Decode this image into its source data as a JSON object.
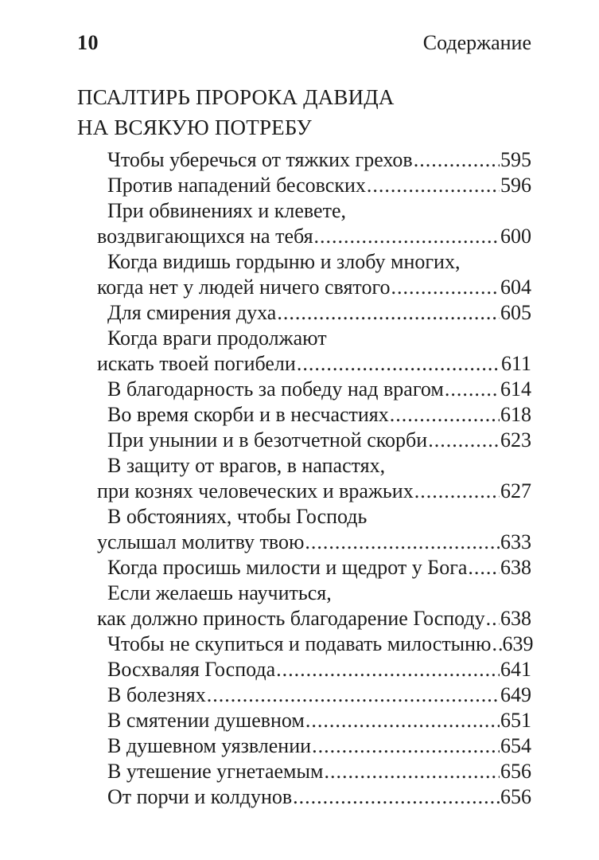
{
  "page": {
    "folio": "10",
    "running_title": "Содержание"
  },
  "section_title": {
    "line1": "ПСАЛТИРЬ ПРОРОКА ДАВИДА",
    "line2": "НА ВСЯКУЮ ПОТРЕБУ"
  },
  "toc": {
    "entries": [
      {
        "lines": [
          "Чтобы уберечься от тяжких грехов"
        ],
        "page": "595"
      },
      {
        "lines": [
          "Против нападений бесовских"
        ],
        "page": "596"
      },
      {
        "lines": [
          "При обвинениях и клевете,",
          "воздвигающихся на тебя"
        ],
        "page": "600"
      },
      {
        "lines": [
          "Когда видишь гордыню и злобу многих,",
          "когда нет у людей ничего святого"
        ],
        "page": "604"
      },
      {
        "lines": [
          "Для смирения духа"
        ],
        "page": "605"
      },
      {
        "lines": [
          "Когда враги продолжают",
          "искать твоей погибели"
        ],
        "page": "611"
      },
      {
        "lines": [
          "В благодарность за победу над врагом"
        ],
        "page": "614"
      },
      {
        "lines": [
          "Во время скорби и в несчастиях"
        ],
        "page": "618"
      },
      {
        "lines": [
          "При унынии и в безотчетной скорби"
        ],
        "page": "623"
      },
      {
        "lines": [
          "В защиту от врагов, в напастях,",
          "при кознях человеческих и вражьих"
        ],
        "page": "627"
      },
      {
        "lines": [
          "В обстояниях, чтобы Господь",
          "услышал молитву твою"
        ],
        "page": "633"
      },
      {
        "lines": [
          "Когда просишь милости и щедрот у Бога"
        ],
        "page": "638"
      },
      {
        "lines": [
          "Если желаешь научиться,",
          "как должно приность благодарение Господу"
        ],
        "page": "638"
      },
      {
        "lines": [
          "Чтобы не скупиться и подавать милостыню"
        ],
        "page": "639"
      },
      {
        "lines": [
          "Восхваляя Господа"
        ],
        "page": "641"
      },
      {
        "lines": [
          "В болезнях"
        ],
        "page": "649"
      },
      {
        "lines": [
          "В смятении душевном"
        ],
        "page": "651"
      },
      {
        "lines": [
          "В душевном уязвлении"
        ],
        "page": "654"
      },
      {
        "lines": [
          "В утешение угнетаемым"
        ],
        "page": "656"
      },
      {
        "lines": [
          "От порчи и колдунов"
        ],
        "page": "656"
      }
    ]
  }
}
